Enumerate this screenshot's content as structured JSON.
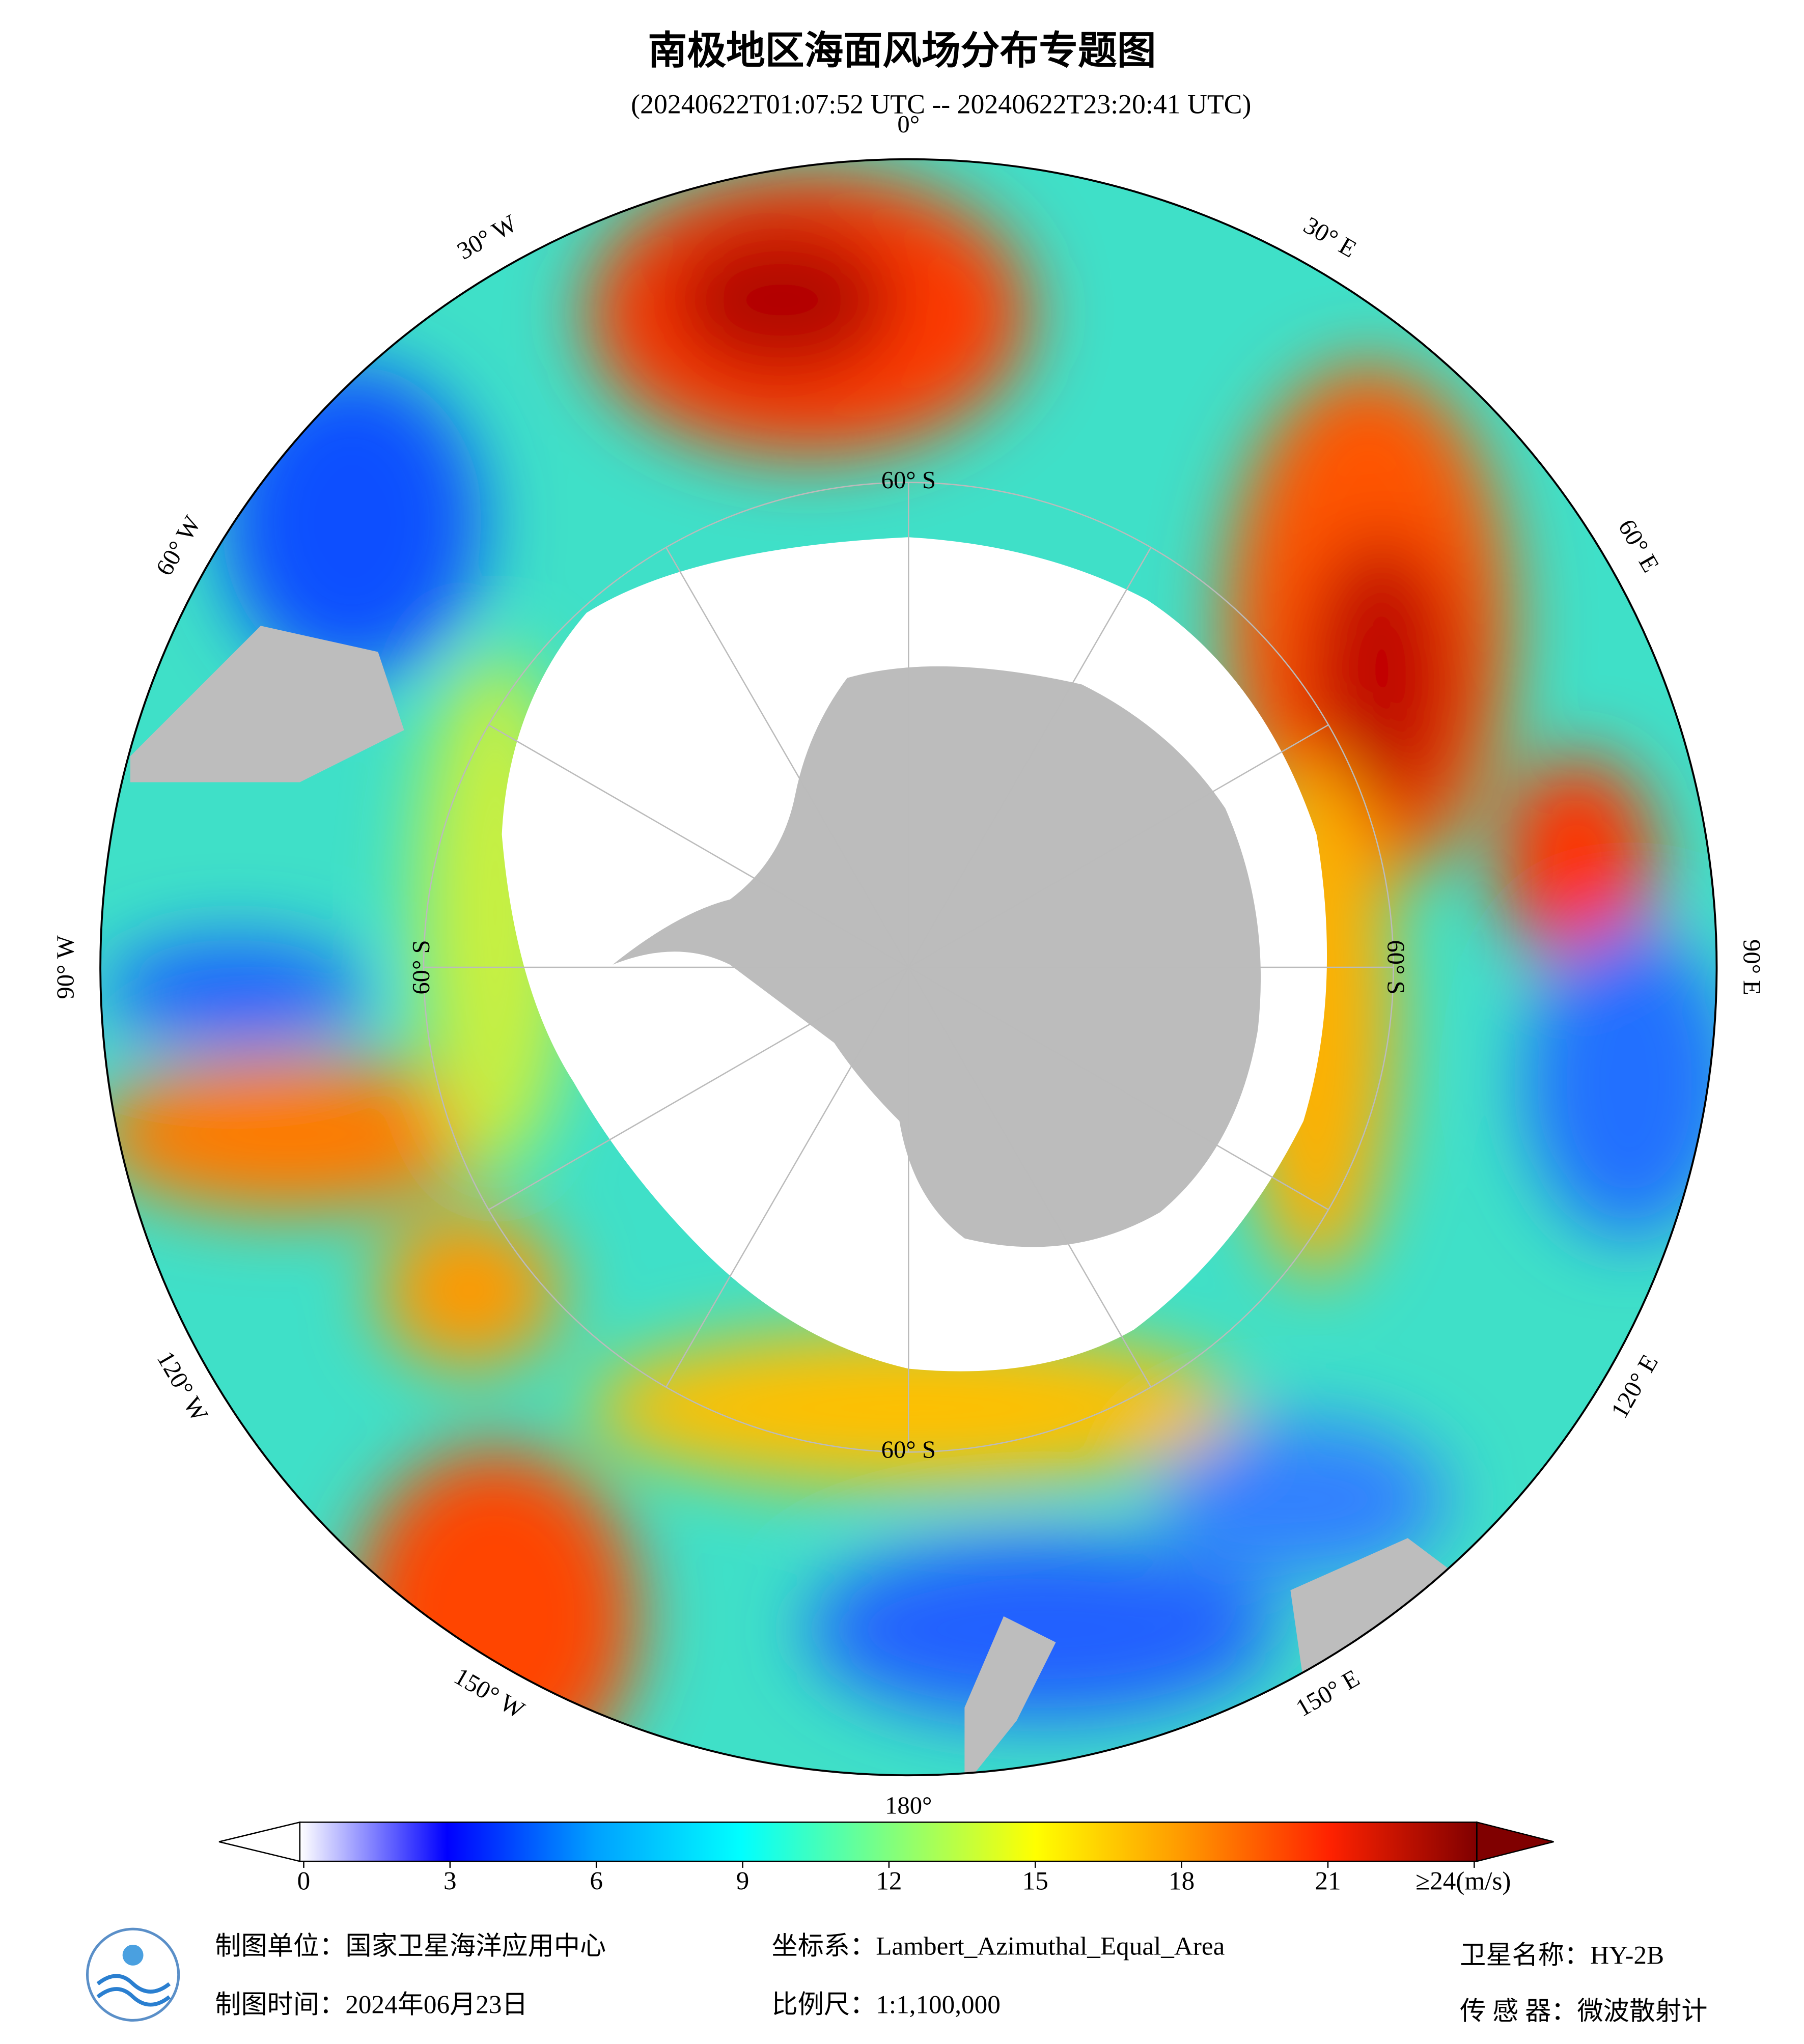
{
  "title": "南极地区海面风场分布专题图",
  "subtitle": "(20240622T01:07:52 UTC -- 20240622T23:20:41 UTC)",
  "map": {
    "longitude_labels": [
      "0°",
      "30° E",
      "60° E",
      "90° E",
      "120° E",
      "150° E",
      "180°",
      "150° W",
      "120° W",
      "90° W",
      "60° W",
      "30° W"
    ],
    "latitude_labels": [
      "60° S",
      "60° S",
      "60° S",
      "60° S"
    ]
  },
  "colorbar": {
    "lim": [
      0,
      24
    ],
    "ticks": [
      0,
      3,
      6,
      9,
      12,
      15,
      18,
      21,
      {
        "value": 24,
        "label": "≥24(m/s)"
      }
    ],
    "colors": [
      "#ffffff",
      "#0000ff",
      "#00a0ff",
      "#00ffff",
      "#7fff7f",
      "#ffff00",
      "#ff9900",
      "#ff2200",
      "#800000"
    ]
  },
  "footer": {
    "unit": "制图单位：国家卫星海洋应用中心",
    "date": "制图时间：2024年06月23日",
    "crs": "坐标系：Lambert_Azimuthal_Equal_Area",
    "scale": "比例尺：1:1,100,000",
    "satellite": "卫星名称：HY-2B",
    "sensor": "传 感 器：微波散射计"
  }
}
